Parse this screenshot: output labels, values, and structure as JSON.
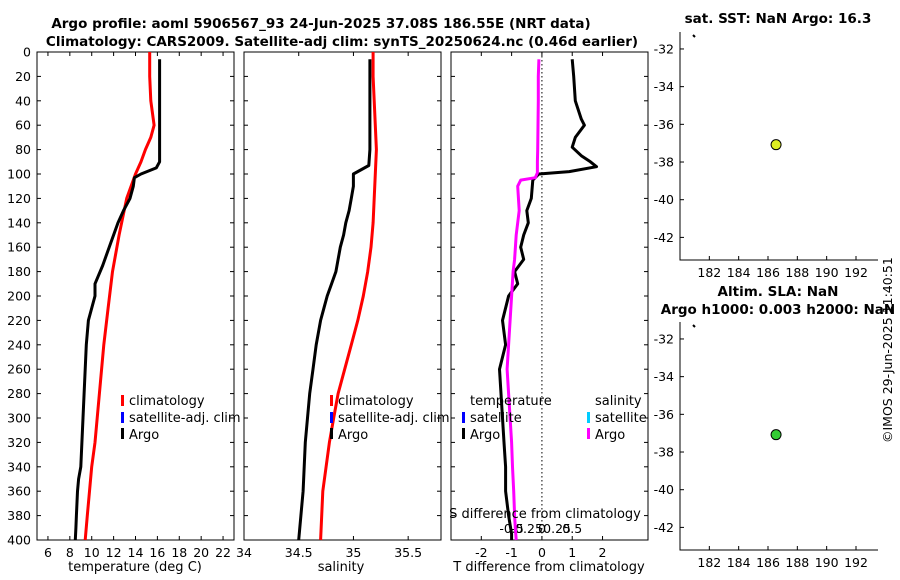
{
  "titles": {
    "line1": "Argo profile: aoml 5906567_93 24-Jun-2025 37.08S 186.55E (NRT data)",
    "line2": "Climatology: CARS2009. Satellite-adj clim: synTS_20250624.nc (0.46d earlier)"
  },
  "stamp": "©IMOS 29-Jun-2025 11:40:51",
  "chart_data": [
    {
      "id": "temperature",
      "type": "line",
      "xlabel": "temperature (deg C)",
      "xticks": [
        6,
        8,
        10,
        12,
        14,
        16,
        18,
        20,
        22
      ],
      "xlim": [
        5,
        23
      ],
      "ylim": [
        0,
        400
      ],
      "yticks": [
        0,
        20,
        40,
        60,
        80,
        100,
        120,
        140,
        160,
        180,
        200,
        220,
        240,
        260,
        280,
        300,
        320,
        340,
        360,
        380,
        400
      ],
      "ydir": "reverse",
      "legend": [
        "climatology",
        "satellite-adj. clim",
        "Argo"
      ],
      "series": [
        {
          "name": "climatology",
          "color": "#ff0000",
          "x": [
            15.3,
            15.3,
            15.4,
            15.7,
            15.4,
            14.9,
            14.5,
            14.0,
            13.2,
            12.5,
            11.9,
            11.5,
            11.1,
            10.8,
            10.5,
            10.3,
            10.0,
            9.8,
            9.6,
            9.4
          ],
          "y": [
            0,
            20,
            40,
            60,
            70,
            80,
            90,
            100,
            120,
            150,
            180,
            210,
            240,
            270,
            300,
            320,
            340,
            360,
            380,
            400
          ]
        },
        {
          "name": "Argo",
          "color": "#000000",
          "x": [
            16.2,
            16.2,
            16.2,
            16.2,
            16.2,
            16.2,
            15.9,
            14.5,
            13.9,
            13.8,
            13.5,
            12.9,
            12.4,
            12.0,
            11.6,
            11.0,
            10.3,
            10.3,
            9.7,
            9.5,
            9.4,
            9.3,
            9.2,
            9.1,
            9.0,
            8.8,
            8.7,
            8.6,
            8.55,
            8.5
          ],
          "y": [
            6,
            20,
            40,
            60,
            80,
            90,
            95,
            100,
            103,
            110,
            120,
            130,
            140,
            150,
            160,
            175,
            190,
            200,
            220,
            240,
            260,
            280,
            300,
            320,
            340,
            350,
            360,
            380,
            390,
            400
          ]
        }
      ]
    },
    {
      "id": "salinity",
      "type": "line",
      "xlabel": "salinity",
      "xticks": [
        34,
        34.5,
        35,
        35.5
      ],
      "xlim": [
        34,
        35.8
      ],
      "ylim": [
        0,
        400
      ],
      "ydir": "reverse",
      "legend": [
        "climatology",
        "satellite-adj. clim",
        "Argo"
      ],
      "series": [
        {
          "name": "climatology",
          "color": "#ff0000",
          "x": [
            35.18,
            35.18,
            35.19,
            35.2,
            35.21,
            35.2,
            35.19,
            35.18,
            35.16,
            35.13,
            35.09,
            35.04,
            34.98,
            34.92,
            34.86,
            34.82,
            34.78,
            34.75,
            34.72,
            34.7
          ],
          "y": [
            0,
            20,
            40,
            60,
            80,
            100,
            120,
            140,
            160,
            180,
            200,
            220,
            240,
            260,
            280,
            300,
            320,
            340,
            360,
            400
          ]
        },
        {
          "name": "Argo",
          "color": "#000000",
          "x": [
            35.15,
            35.15,
            35.15,
            35.15,
            35.15,
            35.14,
            35.0,
            35.0,
            34.98,
            34.96,
            34.93,
            34.91,
            34.88,
            34.86,
            34.84,
            34.8,
            34.76,
            34.73,
            34.7,
            34.66,
            34.63,
            34.6,
            34.58,
            34.56,
            34.55,
            34.54,
            34.53,
            34.52,
            34.51,
            34.5
          ],
          "y": [
            6,
            20,
            40,
            60,
            80,
            93,
            100,
            110,
            120,
            130,
            140,
            150,
            160,
            170,
            180,
            190,
            200,
            210,
            220,
            240,
            260,
            280,
            300,
            320,
            340,
            360,
            370,
            380,
            390,
            400
          ]
        }
      ]
    },
    {
      "id": "difference",
      "type": "line",
      "xlabel": "T difference from climatology",
      "xlabel2": "S difference from climatology",
      "xticks": [
        -2,
        -1,
        0,
        1,
        2
      ],
      "xticks2": [
        "-0.5",
        "-0.25",
        "0",
        "0.25",
        "0.5"
      ],
      "xlim": [
        -3,
        3.5
      ],
      "ylim": [
        0,
        400
      ],
      "ydir": "reverse",
      "legend_temperature": {
        "title": "temperature",
        "items": [
          "satellite",
          "Argo"
        ]
      },
      "legend_salinity": {
        "title": "salinity",
        "items": [
          "satellite",
          "Argo"
        ]
      },
      "series": [
        {
          "name": "temperature Argo",
          "color": "#000000",
          "x": [
            1.0,
            1.05,
            1.1,
            1.3,
            1.4,
            1.1,
            1.0,
            1.3,
            1.6,
            1.8,
            0.9,
            -0.1,
            -0.3,
            -0.35,
            -0.5,
            -0.45,
            -0.6,
            -0.7,
            -0.6,
            -0.9,
            -0.8,
            -1.1,
            -1.3,
            -1.2,
            -1.4,
            -1.35,
            -1.3,
            -1.25,
            -1.2,
            -1.2,
            -1.1,
            -1.0,
            -1.0
          ],
          "y": [
            6,
            20,
            40,
            55,
            60,
            70,
            78,
            85,
            90,
            94,
            98,
            100,
            105,
            120,
            130,
            140,
            150,
            160,
            170,
            180,
            190,
            200,
            220,
            240,
            260,
            280,
            300,
            320,
            340,
            360,
            380,
            395,
            400
          ]
        },
        {
          "name": "salinity Argo",
          "color": "#ff00ff",
          "x": [
            -0.1,
            -0.12,
            -0.12,
            -0.13,
            -0.14,
            -0.15,
            -0.15,
            -0.15,
            -0.22,
            -0.7,
            -0.8,
            -0.75,
            -0.85,
            -0.9,
            -0.95,
            -1.0,
            -1.05,
            -1.1,
            -1.15,
            -1.1,
            -1.05,
            -1.0,
            -0.97,
            -0.93,
            -0.9,
            -0.88,
            -0.85
          ],
          "y": [
            6,
            20,
            40,
            60,
            80,
            90,
            96,
            99,
            103,
            105,
            110,
            130,
            150,
            170,
            180,
            200,
            220,
            240,
            260,
            280,
            300,
            320,
            340,
            360,
            380,
            390,
            400
          ]
        }
      ]
    },
    {
      "id": "sst-map",
      "type": "scatter",
      "title": "sat. SST: NaN Argo: 16.3",
      "xticks": [
        182,
        184,
        186,
        188,
        190,
        192
      ],
      "yticks": [
        -32,
        -34,
        -36,
        -38,
        -40,
        -42
      ],
      "xlim": [
        180,
        193.5
      ],
      "ylim": [
        -43.2,
        -31.1
      ],
      "marker_color": "#ddee22",
      "x": [
        186.55
      ],
      "y": [
        -37.08
      ]
    },
    {
      "id": "sla-map",
      "type": "scatter",
      "title1": "Altim. SLA: NaN",
      "title2": "Argo h1000: 0.003 h2000: NaN",
      "xticks": [
        182,
        184,
        186,
        188,
        190,
        192
      ],
      "yticks": [
        -32,
        -34,
        -36,
        -38,
        -40,
        -42
      ],
      "xlim": [
        180,
        193.5
      ],
      "ylim": [
        -43.2,
        -31.1
      ],
      "marker_color": "#33cc33",
      "x": [
        186.55
      ],
      "y": [
        -37.08
      ]
    }
  ]
}
